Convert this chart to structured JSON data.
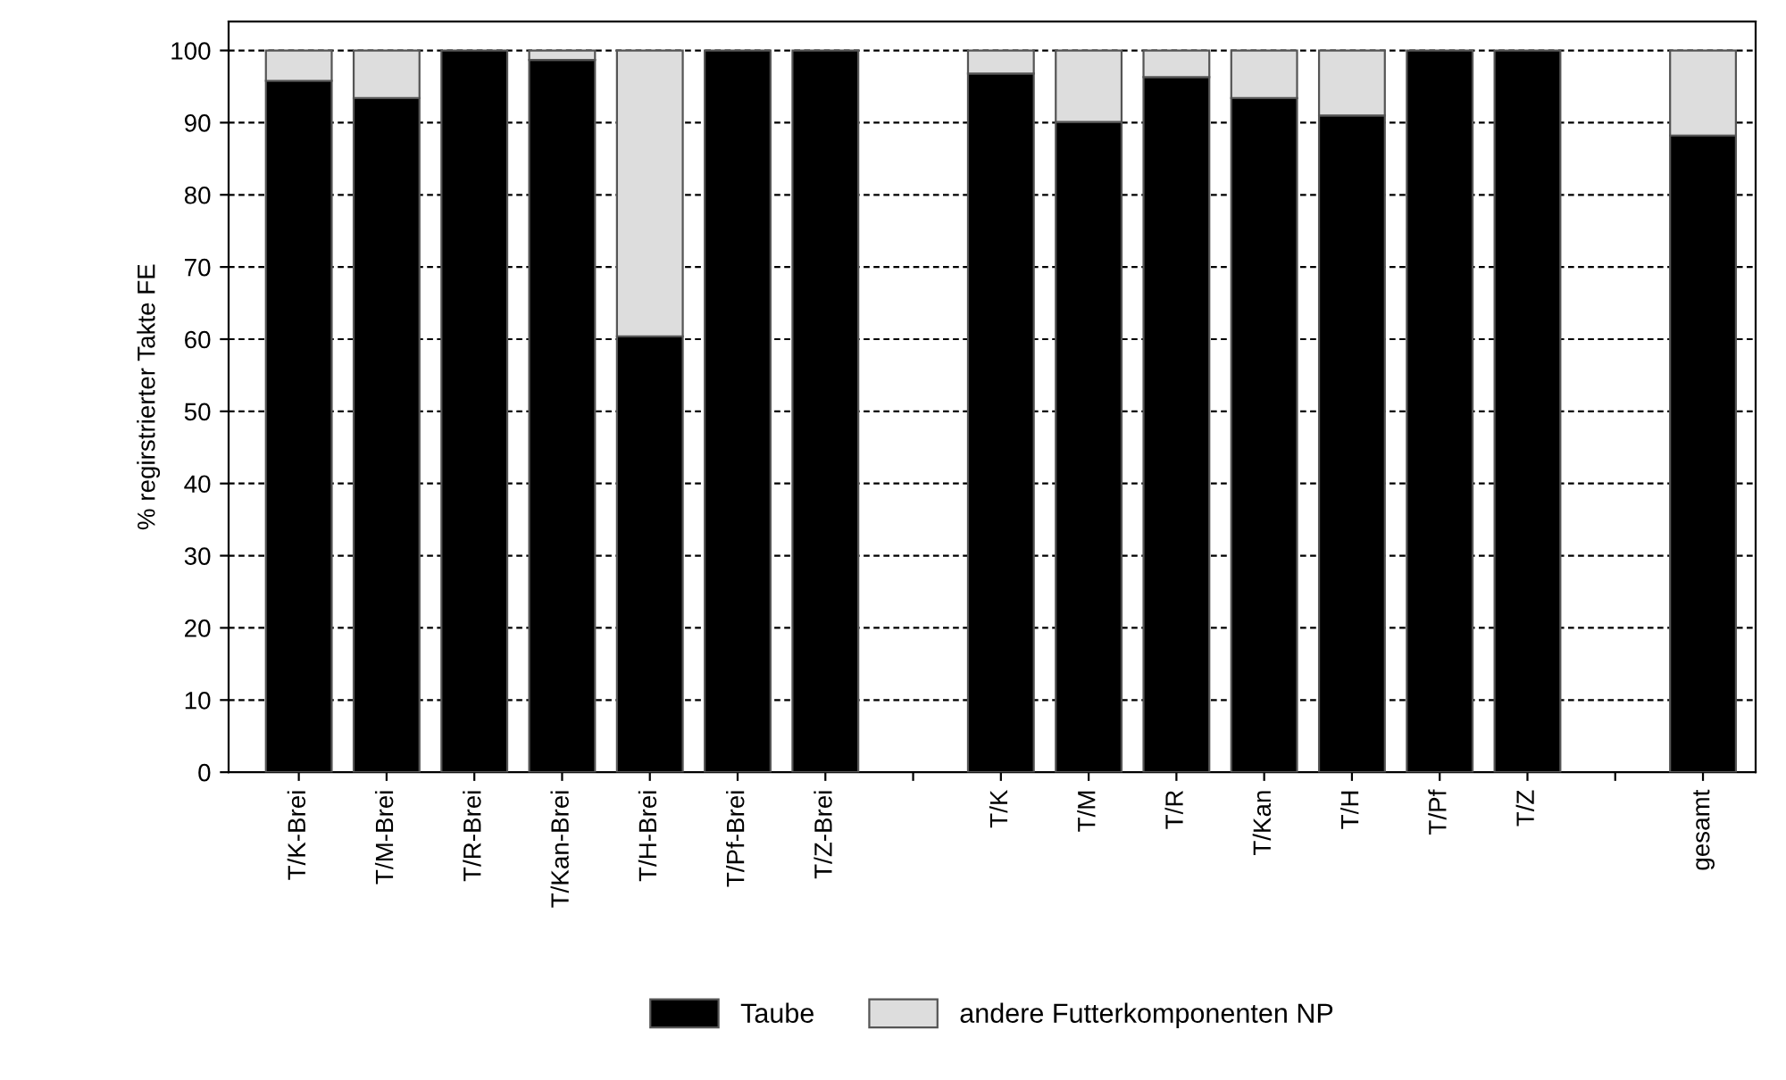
{
  "chart_data": {
    "type": "bar",
    "stacked": true,
    "ylabel": "% regirstrierter Takte FE",
    "categories": [
      "T/K-Brei",
      "T/M-Brei",
      "T/R-Brei",
      "T/Kan-Brei",
      "T/H-Brei",
      "T/Pf-Brei",
      "T/Z-Brei",
      null,
      "T/K",
      "T/M",
      "T/R",
      "T/Kan",
      "T/H",
      "T/Pf",
      "T/Z",
      null,
      "gesamt"
    ],
    "series": [
      {
        "name": "Taube",
        "color": "#000000",
        "values": [
          95.8,
          93.4,
          100,
          98.7,
          60.4,
          100,
          100,
          null,
          96.8,
          90.1,
          96.3,
          93.4,
          91.0,
          100,
          100,
          null,
          88.2
        ]
      },
      {
        "name": "andere Futterkomponenten NP",
        "color": "#dddddd",
        "values": [
          4.2,
          6.6,
          0,
          1.3,
          39.6,
          0,
          0,
          null,
          3.2,
          9.9,
          3.7,
          6.6,
          9.0,
          0,
          0,
          null,
          11.8
        ]
      }
    ],
    "ylim": [
      0,
      104
    ],
    "yticks": [
      0,
      10,
      20,
      30,
      40,
      50,
      60,
      70,
      80,
      90,
      100
    ],
    "grid": "y",
    "legend": "bottom"
  }
}
